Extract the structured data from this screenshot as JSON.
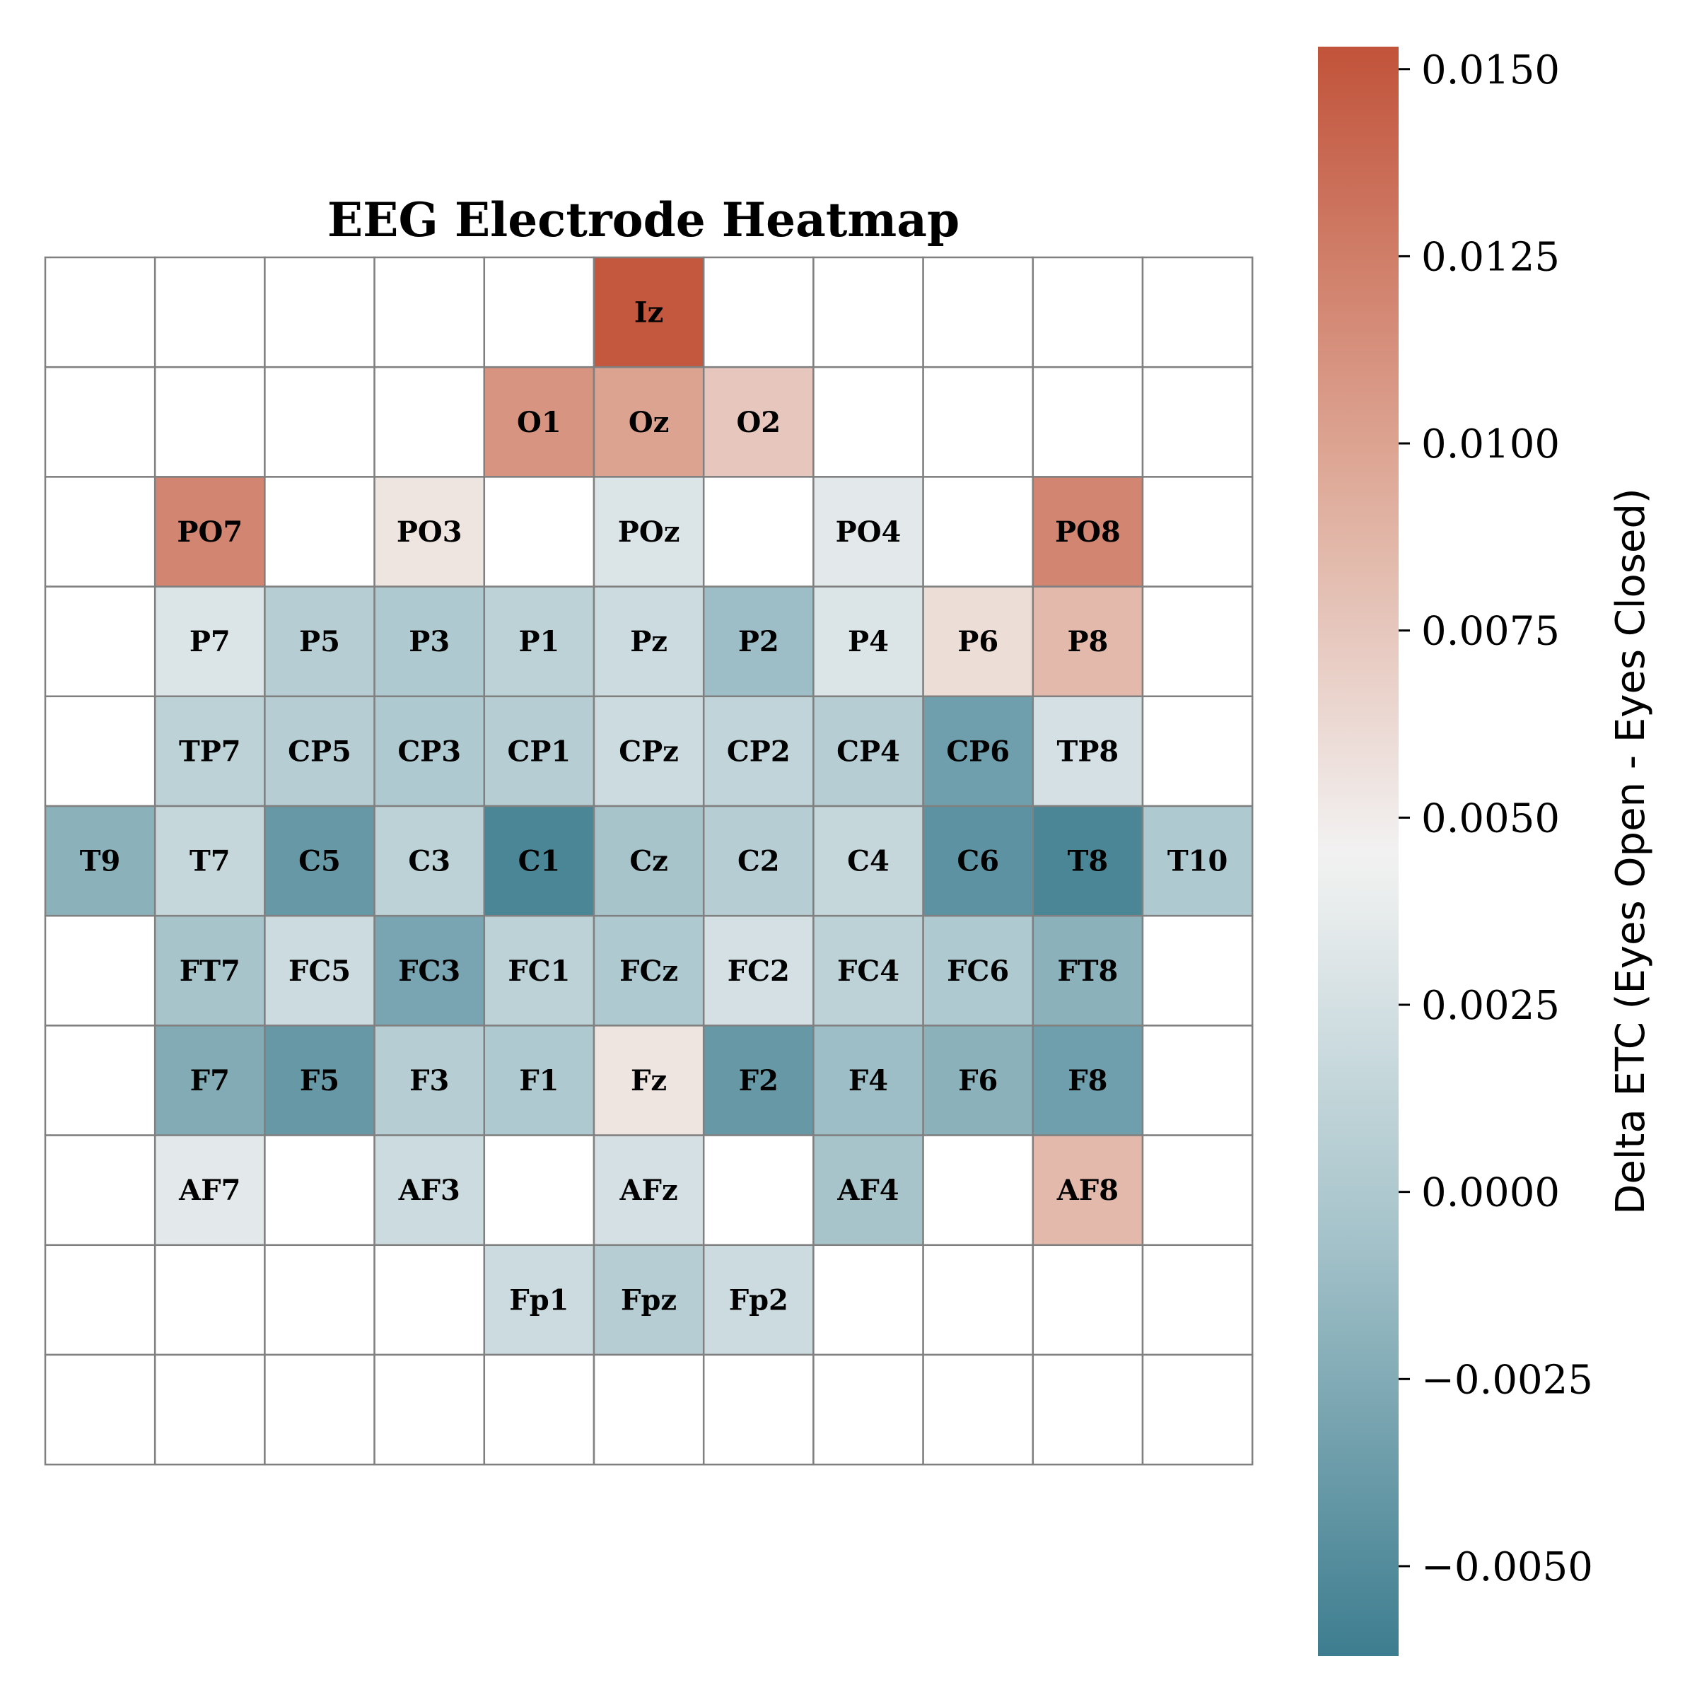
{
  "chart_data": {
    "type": "heatmap",
    "title": "EEG Electrode Heatmap",
    "grid": {
      "rows": 11,
      "cols": 11
    },
    "electrodes": [
      {
        "label": "Iz",
        "row": 0,
        "col": 5,
        "value": 0.015
      },
      {
        "label": "O1",
        "row": 1,
        "col": 4,
        "value": 0.011
      },
      {
        "label": "Oz",
        "row": 1,
        "col": 5,
        "value": 0.01
      },
      {
        "label": "O2",
        "row": 1,
        "col": 6,
        "value": 0.0075
      },
      {
        "label": "PO7",
        "row": 2,
        "col": 1,
        "value": 0.012
      },
      {
        "label": "PO3",
        "row": 2,
        "col": 3,
        "value": 0.0055
      },
      {
        "label": "POz",
        "row": 2,
        "col": 5,
        "value": 0.003
      },
      {
        "label": "PO4",
        "row": 2,
        "col": 7,
        "value": 0.0035
      },
      {
        "label": "PO8",
        "row": 2,
        "col": 9,
        "value": 0.012
      },
      {
        "label": "P7",
        "row": 3,
        "col": 1,
        "value": 0.003
      },
      {
        "label": "P5",
        "row": 3,
        "col": 2,
        "value": 0.0005
      },
      {
        "label": "P3",
        "row": 3,
        "col": 3,
        "value": 0.0
      },
      {
        "label": "P1",
        "row": 3,
        "col": 4,
        "value": 0.001
      },
      {
        "label": "Pz",
        "row": 3,
        "col": 5,
        "value": 0.002
      },
      {
        "label": "P2",
        "row": 3,
        "col": 6,
        "value": -0.001
      },
      {
        "label": "P4",
        "row": 3,
        "col": 7,
        "value": 0.003
      },
      {
        "label": "P6",
        "row": 3,
        "col": 8,
        "value": 0.006
      },
      {
        "label": "P8",
        "row": 3,
        "col": 9,
        "value": 0.0085
      },
      {
        "label": "TP7",
        "row": 4,
        "col": 1,
        "value": 0.001
      },
      {
        "label": "CP5",
        "row": 4,
        "col": 2,
        "value": 0.0005
      },
      {
        "label": "CP3",
        "row": 4,
        "col": 3,
        "value": 0.0
      },
      {
        "label": "CP1",
        "row": 4,
        "col": 4,
        "value": 0.0005
      },
      {
        "label": "CPz",
        "row": 4,
        "col": 5,
        "value": 0.002
      },
      {
        "label": "CP2",
        "row": 4,
        "col": 6,
        "value": 0.0012
      },
      {
        "label": "CP4",
        "row": 4,
        "col": 7,
        "value": 0.0005
      },
      {
        "label": "CP6",
        "row": 4,
        "col": 8,
        "value": -0.0035
      },
      {
        "label": "TP8",
        "row": 4,
        "col": 9,
        "value": 0.0025
      },
      {
        "label": "T9",
        "row": 5,
        "col": 0,
        "value": -0.002
      },
      {
        "label": "T7",
        "row": 5,
        "col": 1,
        "value": 0.0015
      },
      {
        "label": "C5",
        "row": 5,
        "col": 2,
        "value": -0.004
      },
      {
        "label": "C3",
        "row": 5,
        "col": 3,
        "value": 0.001
      },
      {
        "label": "C1",
        "row": 5,
        "col": 4,
        "value": -0.0055
      },
      {
        "label": "Cz",
        "row": 5,
        "col": 5,
        "value": -0.0005
      },
      {
        "label": "C2",
        "row": 5,
        "col": 6,
        "value": 0.0005
      },
      {
        "label": "C4",
        "row": 5,
        "col": 7,
        "value": 0.0015
      },
      {
        "label": "C6",
        "row": 5,
        "col": 8,
        "value": -0.0045
      },
      {
        "label": "T8",
        "row": 5,
        "col": 9,
        "value": -0.0055
      },
      {
        "label": "T10",
        "row": 5,
        "col": 10,
        "value": 0.0
      },
      {
        "label": "FT7",
        "row": 6,
        "col": 1,
        "value": -0.0005
      },
      {
        "label": "FC5",
        "row": 6,
        "col": 2,
        "value": 0.002
      },
      {
        "label": "FC3",
        "row": 6,
        "col": 3,
        "value": -0.003
      },
      {
        "label": "FC1",
        "row": 6,
        "col": 4,
        "value": 0.001
      },
      {
        "label": "FCz",
        "row": 6,
        "col": 5,
        "value": 0.0
      },
      {
        "label": "FC2",
        "row": 6,
        "col": 6,
        "value": 0.0025
      },
      {
        "label": "FC4",
        "row": 6,
        "col": 7,
        "value": 0.001
      },
      {
        "label": "FC6",
        "row": 6,
        "col": 8,
        "value": 0.0
      },
      {
        "label": "FT8",
        "row": 6,
        "col": 9,
        "value": -0.002
      },
      {
        "label": "F7",
        "row": 7,
        "col": 1,
        "value": -0.0025
      },
      {
        "label": "F5",
        "row": 7,
        "col": 2,
        "value": -0.004
      },
      {
        "label": "F3",
        "row": 7,
        "col": 3,
        "value": 0.0005
      },
      {
        "label": "F1",
        "row": 7,
        "col": 4,
        "value": 0.0
      },
      {
        "label": "Fz",
        "row": 7,
        "col": 5,
        "value": 0.0055
      },
      {
        "label": "F2",
        "row": 7,
        "col": 6,
        "value": -0.004
      },
      {
        "label": "F4",
        "row": 7,
        "col": 7,
        "value": -0.001
      },
      {
        "label": "F6",
        "row": 7,
        "col": 8,
        "value": -0.002
      },
      {
        "label": "F8",
        "row": 7,
        "col": 9,
        "value": -0.0035
      },
      {
        "label": "AF7",
        "row": 8,
        "col": 1,
        "value": 0.0035
      },
      {
        "label": "AF3",
        "row": 8,
        "col": 3,
        "value": 0.002
      },
      {
        "label": "AFz",
        "row": 8,
        "col": 5,
        "value": 0.0025
      },
      {
        "label": "AF4",
        "row": 8,
        "col": 7,
        "value": -0.0005
      },
      {
        "label": "AF8",
        "row": 8,
        "col": 9,
        "value": 0.0085
      },
      {
        "label": "Fp1",
        "row": 9,
        "col": 4,
        "value": 0.002
      },
      {
        "label": "Fpz",
        "row": 9,
        "col": 5,
        "value": 0.0005
      },
      {
        "label": "Fp2",
        "row": 9,
        "col": 6,
        "value": 0.002
      }
    ],
    "colorbar": {
      "label": "Delta ETC (Eyes Open - Eyes Closed)",
      "vmin": -0.0062,
      "vmax": 0.0153,
      "ticks": [
        -0.005,
        -0.0025,
        0.0,
        0.0025,
        0.005,
        0.0075,
        0.01,
        0.0125,
        0.015
      ],
      "tick_labels": [
        "−0.0050",
        "−0.0025",
        "0.0000",
        "0.0025",
        "0.0050",
        "0.0075",
        "0.0100",
        "0.0125",
        "0.0150"
      ],
      "colors": {
        "low": "#3d7d8f",
        "mid_low": "#a8c5cc",
        "center": "#f2f2f2",
        "mid_high": "#dfab9a",
        "high": "#c1533a"
      },
      "center_value": 0.0045
    },
    "empty_cell_color": "#ffffff",
    "gridline_color": "#808080"
  }
}
